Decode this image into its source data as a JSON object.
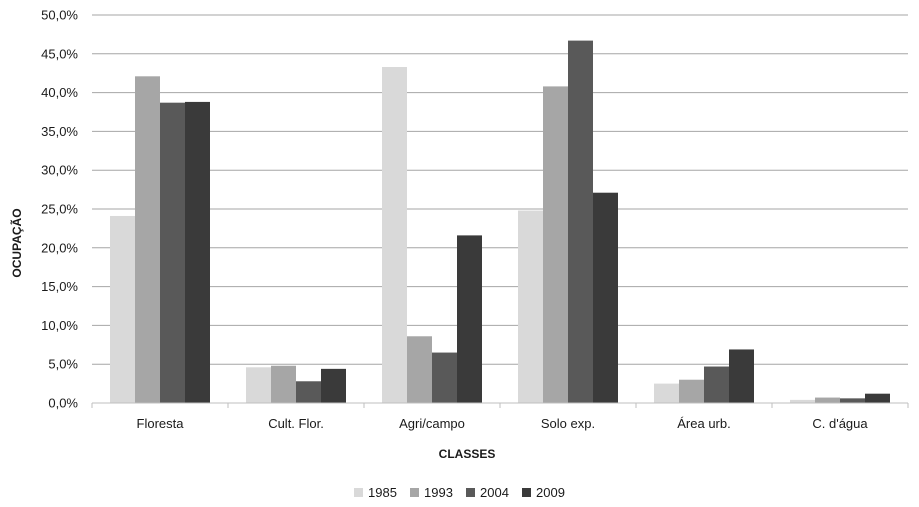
{
  "chart_data": {
    "type": "bar",
    "categories": [
      "Floresta",
      "Cult. Flor.",
      "Agri/campo",
      "Solo exp.",
      "Área urb.",
      "C. d'água"
    ],
    "series": [
      {
        "name": "1985",
        "color": "#d9d9d9",
        "values": [
          24.1,
          4.6,
          43.3,
          24.8,
          2.5,
          0.4
        ]
      },
      {
        "name": "1993",
        "color": "#a6a6a6",
        "values": [
          42.1,
          4.8,
          8.6,
          40.8,
          3.0,
          0.7
        ]
      },
      {
        "name": "2004",
        "color": "#595959",
        "values": [
          38.7,
          2.8,
          6.5,
          46.7,
          4.7,
          0.6
        ]
      },
      {
        "name": "2009",
        "color": "#3a3a3a",
        "values": [
          38.8,
          4.4,
          21.6,
          27.1,
          6.9,
          1.2
        ]
      }
    ],
    "xlabel": "CLASSES",
    "ylabel": "OCUPAÇÃO",
    "ylim": [
      0,
      50
    ],
    "yticks": [
      "0,0%",
      "5,0%",
      "10,0%",
      "15,0%",
      "20,0%",
      "25,0%",
      "30,0%",
      "35,0%",
      "40,0%",
      "45,0%",
      "50,0%"
    ],
    "grid": true,
    "legend_position": "bottom"
  }
}
